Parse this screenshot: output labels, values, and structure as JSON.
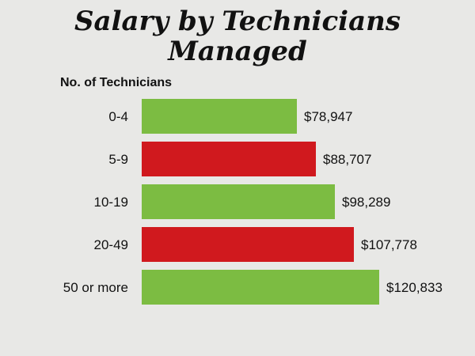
{
  "chart_data": {
    "type": "bar",
    "orientation": "horizontal",
    "title_lines": [
      "Salary by Technicians",
      "Managed"
    ],
    "ylabel": "No. of Technicians",
    "xlabel": "",
    "categories": [
      "0-4",
      "5-9",
      "10-19",
      "20-49",
      "50 or more"
    ],
    "values": [
      78947,
      88707,
      98289,
      107778,
      120833
    ],
    "value_labels": [
      "$78,947",
      "$88,707",
      "$98,289",
      "$107,778",
      "$120,833"
    ],
    "bar_colors": [
      "#7cbc42",
      "#d0191e",
      "#7cbc42",
      "#d0191e",
      "#7cbc42"
    ],
    "xlim": [
      0,
      125000
    ],
    "grid": false,
    "legend": "none"
  },
  "colors": {
    "background": "#e8e8e6",
    "green": "#7cbc42",
    "red": "#d0191e",
    "text": "#111111"
  }
}
